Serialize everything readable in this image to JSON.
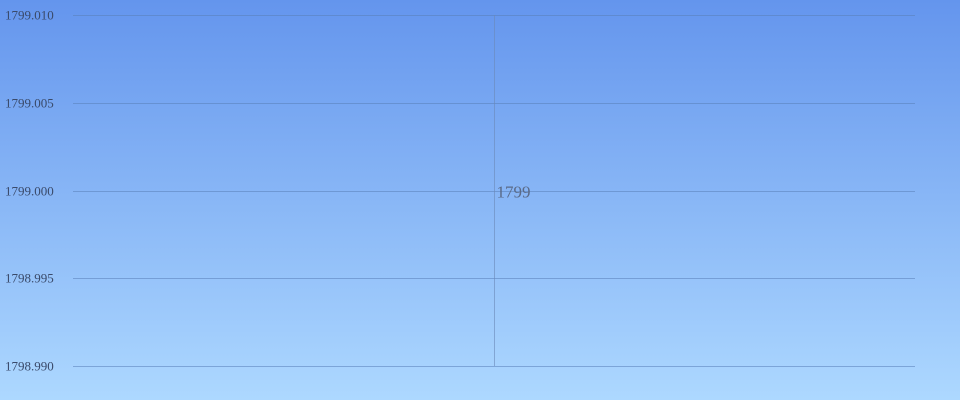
{
  "chart_data": {
    "type": "line",
    "title": "",
    "xlabel": "",
    "ylabel": "",
    "x": [
      0
    ],
    "series": [
      {
        "values": [
          1799
        ],
        "labels": [
          "1799"
        ]
      }
    ],
    "ylim": [
      1798.99,
      1799.01
    ],
    "yticks": [
      1799.01,
      1799.005,
      1799.0,
      1798.995,
      1798.99
    ],
    "ytick_labels": [
      "1799.010",
      "1799.005",
      "1799.000",
      "1798.995",
      "1798.990"
    ],
    "grid": true,
    "legend": "none",
    "colors": {
      "background_top": "#6495ed",
      "background_bottom": "#add8ff",
      "grid": "#5a7fb8",
      "tick_text": "#3a4a6a",
      "point_label": "#5a6a88"
    }
  }
}
